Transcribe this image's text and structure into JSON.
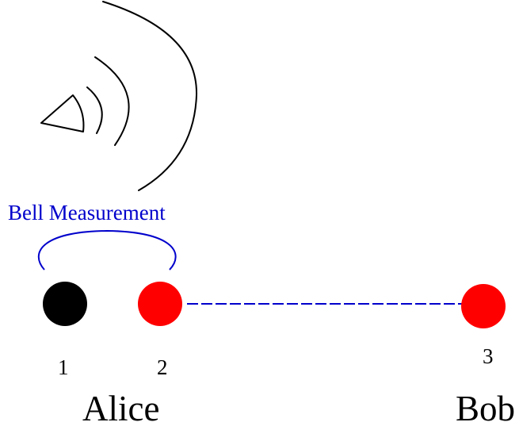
{
  "diagram": {
    "bell_label": "Bell Measurement",
    "particles": [
      {
        "label": "1",
        "color": "#000000",
        "party": "Alice"
      },
      {
        "label": "2",
        "color": "#ff0000",
        "party": "Alice"
      },
      {
        "label": "3",
        "color": "#ff0000",
        "party": "Bob"
      }
    ],
    "parties": [
      {
        "name": "Alice"
      },
      {
        "name": "Bob"
      }
    ],
    "colors": {
      "accent": "#0000cc",
      "entangled_particle": "#ff0000",
      "unknown_particle": "#000000",
      "line": "#000000"
    },
    "icons": {
      "broadcast": "speaker-broadcast-icon"
    }
  }
}
